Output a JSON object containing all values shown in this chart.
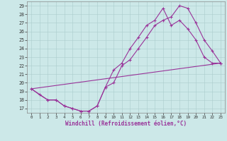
{
  "xlabel": "Windchill (Refroidissement éolien,°C)",
  "xlim": [
    -0.5,
    23.5
  ],
  "ylim": [
    16.5,
    29.5
  ],
  "yticks": [
    17,
    18,
    19,
    20,
    21,
    22,
    23,
    24,
    25,
    26,
    27,
    28,
    29
  ],
  "xticks": [
    0,
    1,
    2,
    3,
    4,
    5,
    6,
    7,
    8,
    9,
    10,
    11,
    12,
    13,
    14,
    15,
    16,
    17,
    18,
    19,
    20,
    21,
    22,
    23
  ],
  "bg_color": "#cce8e8",
  "line_color": "#993399",
  "curve1_x": [
    0,
    1,
    2,
    3,
    4,
    5,
    6,
    7,
    8,
    9,
    10,
    11,
    12,
    13,
    14,
    15,
    16,
    17,
    18,
    19,
    20,
    21,
    22,
    23
  ],
  "curve1_y": [
    19.3,
    18.6,
    18.0,
    18.0,
    17.3,
    17.0,
    16.7,
    16.7,
    17.3,
    19.5,
    20.0,
    22.0,
    22.7,
    24.0,
    25.3,
    26.7,
    27.3,
    27.7,
    29.0,
    28.7,
    27.0,
    25.0,
    23.7,
    22.3
  ],
  "curve2_x": [
    0,
    2,
    3,
    4,
    5,
    6,
    7,
    8,
    9,
    10,
    11,
    12,
    13,
    14,
    15,
    16,
    17,
    18,
    19,
    20,
    21,
    22,
    23
  ],
  "curve2_y": [
    19.3,
    18.0,
    18.0,
    17.3,
    17.0,
    16.7,
    16.7,
    17.3,
    19.5,
    21.5,
    22.3,
    24.0,
    25.3,
    26.7,
    27.3,
    28.7,
    26.7,
    27.3,
    26.3,
    25.0,
    23.0,
    22.3,
    22.3
  ],
  "curve3_x": [
    0,
    23
  ],
  "curve3_y": [
    19.3,
    22.3
  ]
}
